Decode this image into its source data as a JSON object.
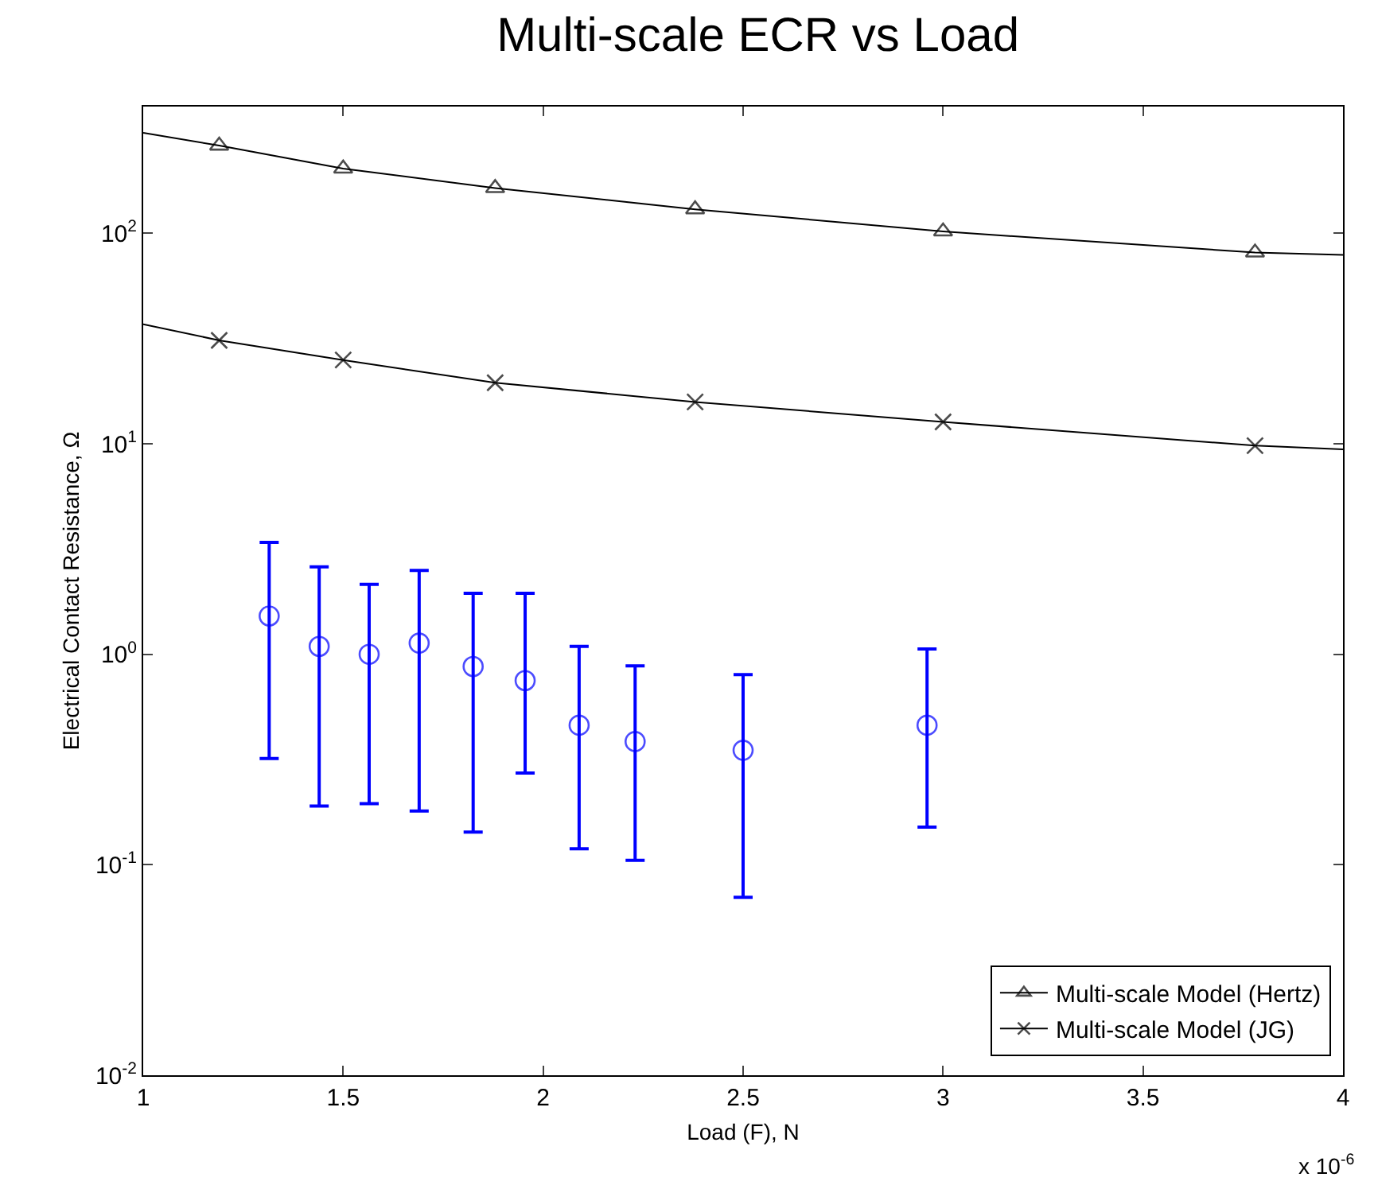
{
  "chart_data": {
    "type": "line",
    "title": "Multi-scale ECR vs Load",
    "xlabel": "Load (F), N",
    "ylabel": "Electrical Contact Resistance, Ω",
    "annotations": [
      "x 10$^{-6}$"
    ],
    "log": "y",
    "grid": false,
    "legend": "bottom right",
    "line_style": "solid",
    "xlim": [
      1,
      4
    ],
    "xticks": [
      1,
      1.5,
      2,
      2.5,
      3,
      3.5,
      4
    ],
    "ylim": [
      0.01,
      400
    ],
    "yticks": [
      {
        "value": 0.01,
        "label": "10$^{-2}$"
      },
      {
        "value": 0.1,
        "label": "10$^{-1}$"
      },
      {
        "value": 1,
        "label": "10$^{0}$"
      },
      {
        "value": 10,
        "label": "10$^{1}$"
      },
      {
        "value": 100,
        "label": "10$^{2}$"
      }
    ],
    "series": [
      {
        "name": "Multi-scale Model (Hertz)",
        "color": "#000000",
        "marker": "triangle",
        "x": [
          1,
          1.19,
          1.5,
          1.88,
          2.38,
          3.0,
          3.78,
          4
        ],
        "values": [
          300,
          261,
          203,
          164,
          130,
          102,
          81,
          79
        ]
      },
      {
        "name": "Multi-scale Model (JG)",
        "color": "#000000",
        "marker": "cross",
        "x": [
          1,
          1.19,
          1.5,
          1.88,
          2.38,
          3.0,
          3.78,
          4
        ],
        "values": [
          37,
          31,
          25,
          19.5,
          15.8,
          12.7,
          9.8,
          9.4
        ]
      },
      {
        "type": "scatter",
        "color": "#0000ff",
        "marker": "circle",
        "x": [
          1.315,
          1.44,
          1.565,
          1.69,
          1.825,
          1.955,
          2.09,
          2.23,
          2.5,
          2.96
        ],
        "values": [
          1.52,
          1.09,
          1.0,
          1.13,
          0.875,
          0.75,
          0.46,
          0.385,
          0.35,
          0.46
        ],
        "errors": [
          [
            0.32,
            3.4
          ],
          [
            0.19,
            2.6
          ],
          [
            0.195,
            2.15
          ],
          [
            0.18,
            2.5
          ],
          [
            0.143,
            1.95
          ],
          [
            0.273,
            1.95
          ],
          [
            0.119,
            1.09
          ],
          [
            0.105,
            0.88
          ],
          [
            0.07,
            0.8
          ],
          [
            0.151,
            1.06
          ]
        ]
      }
    ]
  }
}
